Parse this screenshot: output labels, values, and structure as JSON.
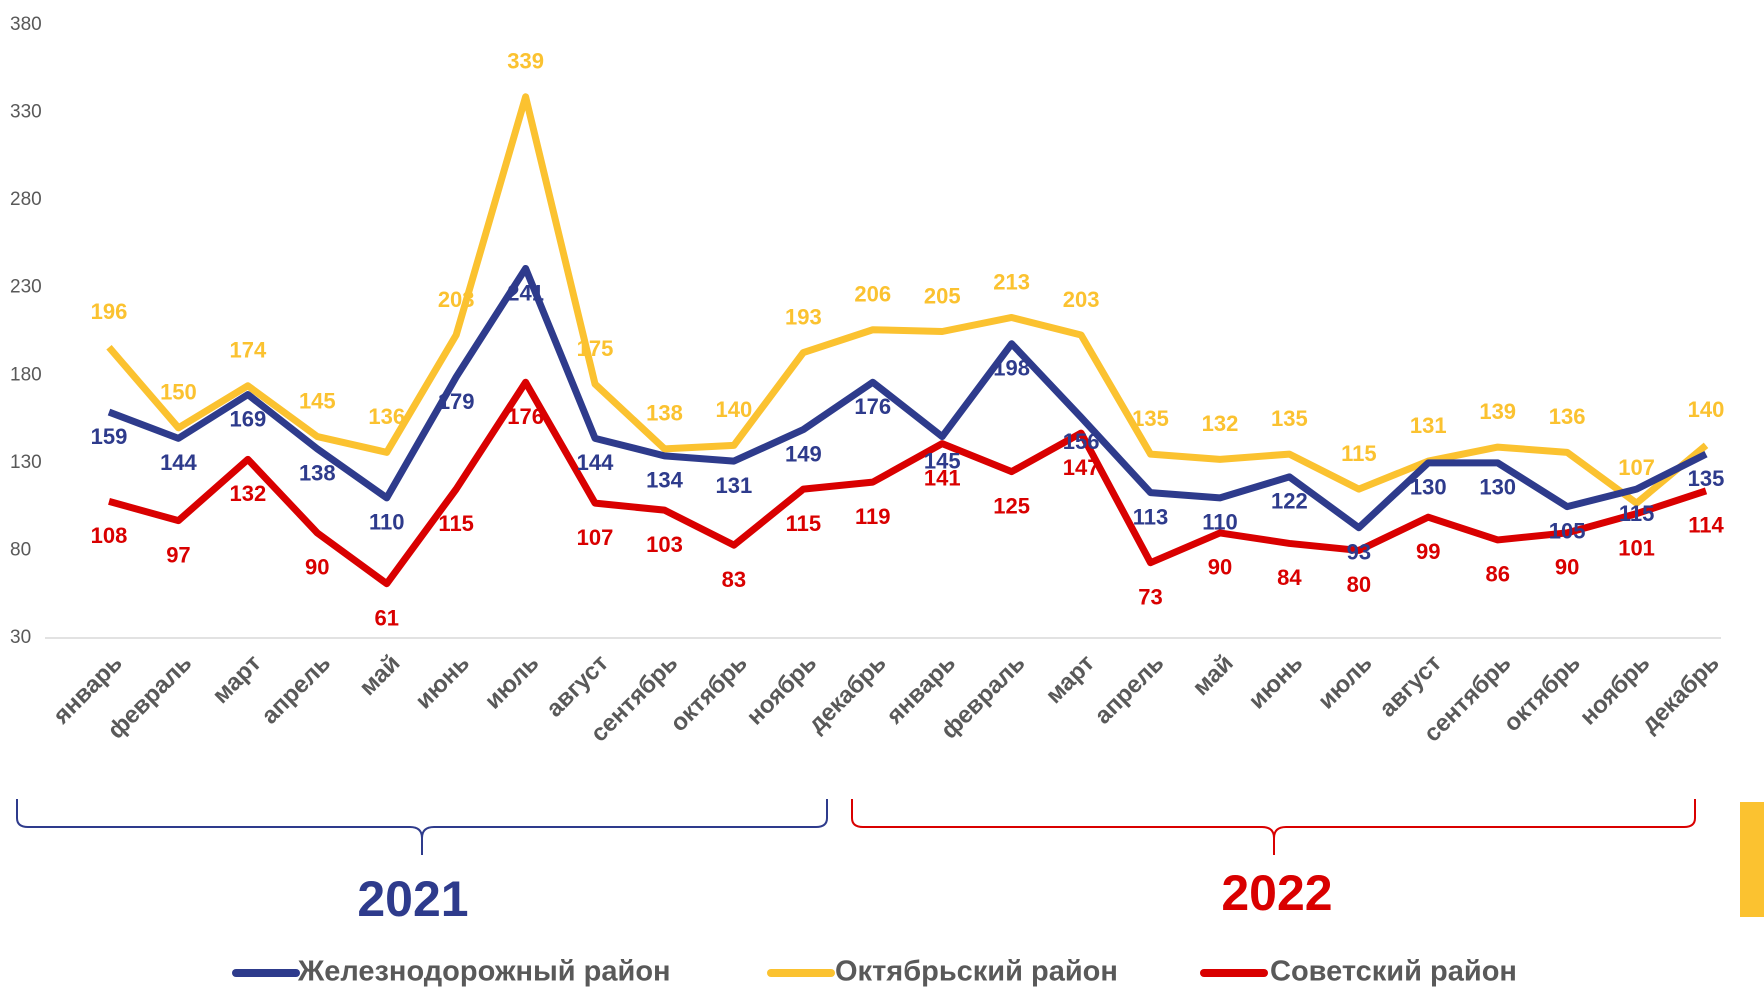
{
  "chart_data": {
    "type": "line",
    "categories": [
      "январь",
      "февраль",
      "март",
      "апрель",
      "май",
      "июнь",
      "июль",
      "август",
      "сентябрь",
      "октябрь",
      "ноябрь",
      "декабрь",
      "январь",
      "февраль",
      "март",
      "апрель",
      "май",
      "июнь",
      "июль",
      "август",
      "сентябрь",
      "октябрь",
      "ноябрь",
      "декабрь"
    ],
    "series": [
      {
        "name": "Железнодорожный район",
        "color": "#2e3b8c",
        "values": [
          159,
          144,
          169,
          138,
          110,
          179,
          241,
          144,
          134,
          131,
          149,
          176,
          145,
          198,
          156,
          113,
          110,
          122,
          93,
          130,
          130,
          105,
          115,
          135
        ]
      },
      {
        "name": "Октябрьский район",
        "color": "#fbc230",
        "values": [
          196,
          150,
          174,
          145,
          136,
          203,
          339,
          175,
          138,
          140,
          193,
          206,
          205,
          213,
          203,
          135,
          132,
          135,
          115,
          131,
          139,
          136,
          107,
          140
        ]
      },
      {
        "name": "Советский район",
        "color": "#d90000",
        "values": [
          108,
          97,
          132,
          90,
          61,
          115,
          176,
          107,
          103,
          83,
          115,
          119,
          141,
          125,
          147,
          73,
          90,
          84,
          80,
          99,
          86,
          90,
          101,
          114
        ]
      }
    ],
    "ylim": [
      30,
      380
    ],
    "yticks": [
      30,
      80,
      130,
      180,
      230,
      280,
      330,
      380
    ],
    "annotations": [
      "2021",
      "2022"
    ],
    "legend": "bottom"
  }
}
